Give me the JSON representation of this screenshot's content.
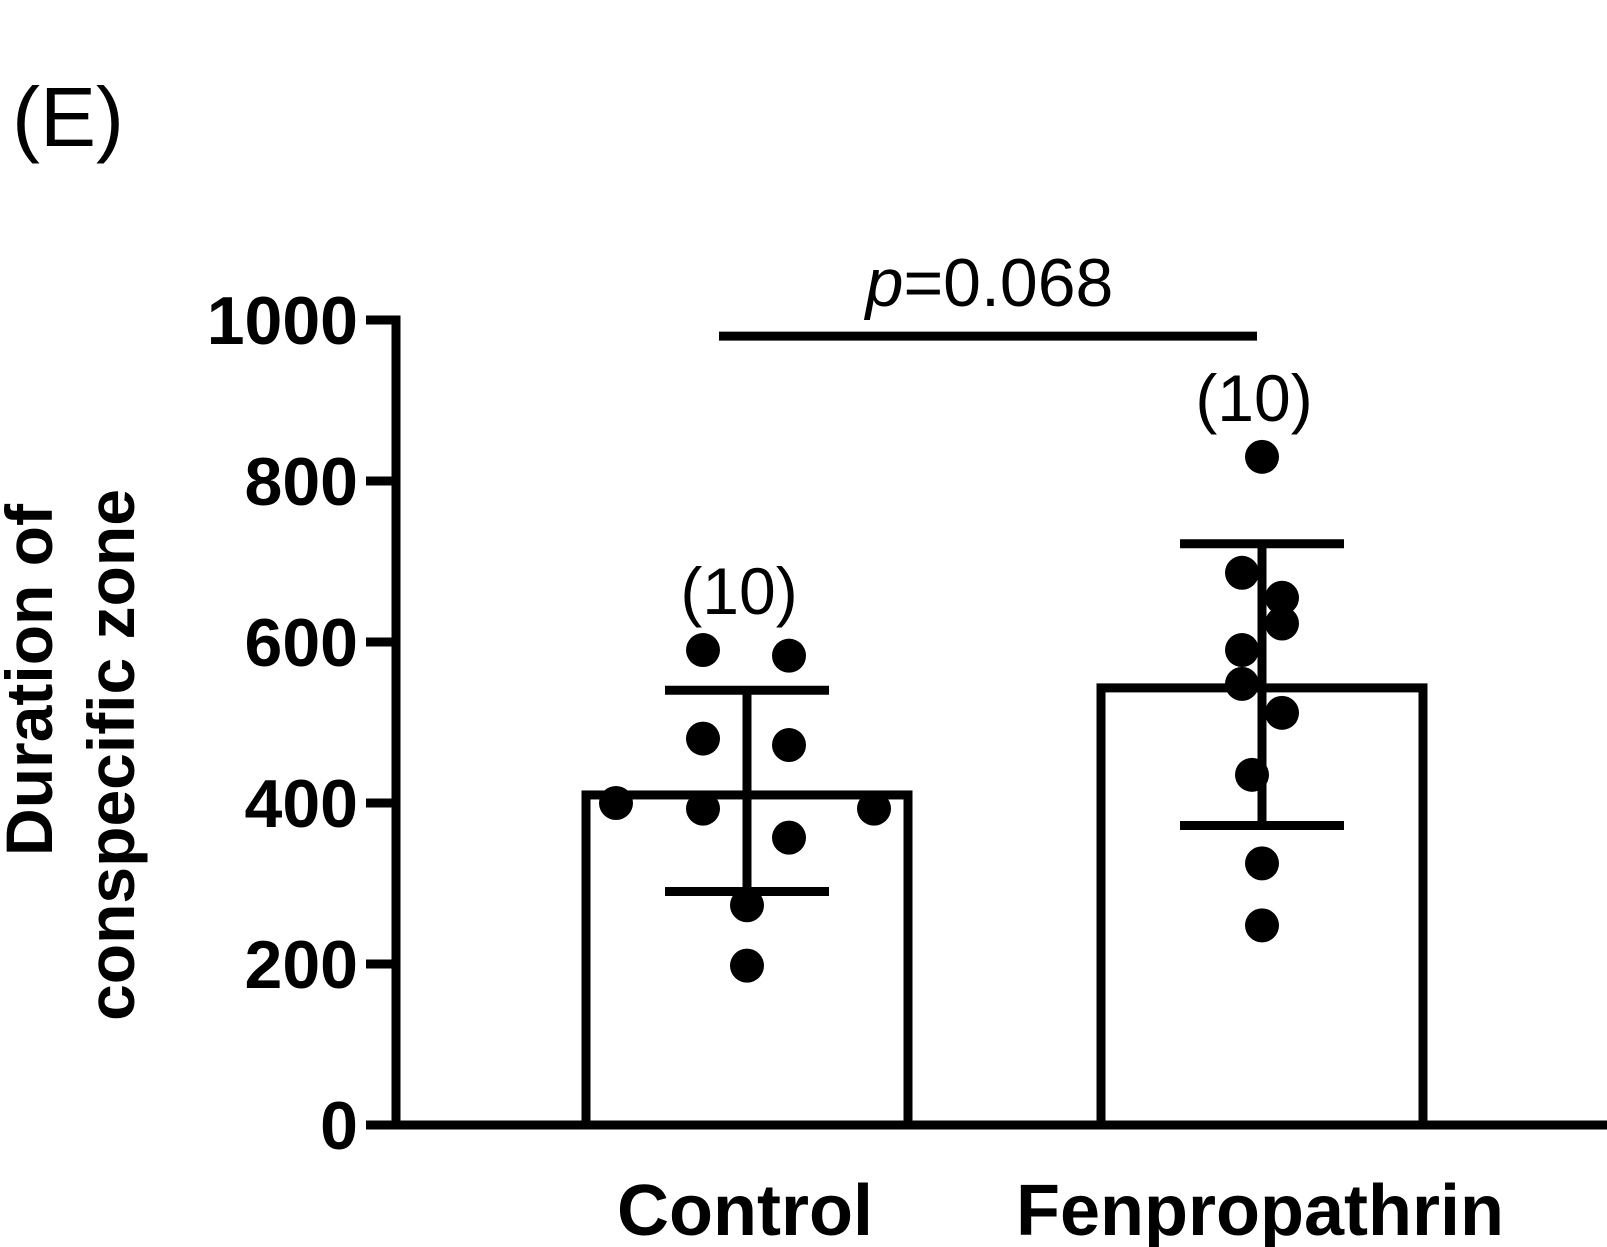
{
  "panel_label": "(E)",
  "chart_data": {
    "type": "bar",
    "title": "",
    "xlabel": "",
    "ylabel_lines": [
      "Duration of",
      "conspecific zone"
    ],
    "ylim": [
      0,
      1000
    ],
    "yticks": [
      0,
      200,
      400,
      600,
      800,
      1000
    ],
    "ytick_labels": [
      "0",
      "200",
      "400",
      "600",
      "800",
      "1000"
    ],
    "categories": [
      "Control",
      "Fenpropathrin"
    ],
    "series": [
      {
        "values": [
          410,
          543
        ],
        "error_low": [
          290,
          372
        ],
        "error_high": [
          540,
          722
        ],
        "n_labels": [
          "(10)",
          "(10)"
        ],
        "points": [
          [
            590,
            583,
            480,
            472,
            400,
            393,
            393,
            357,
            273,
            198
          ],
          [
            830,
            686,
            655,
            623,
            590,
            548,
            512,
            435,
            325,
            248
          ]
        ]
      }
    ],
    "significance": {
      "from": 0,
      "to": 1,
      "y": 980,
      "p_symbol": "p",
      "p_value": "=0.068"
    },
    "grid": false,
    "legend": "none"
  }
}
